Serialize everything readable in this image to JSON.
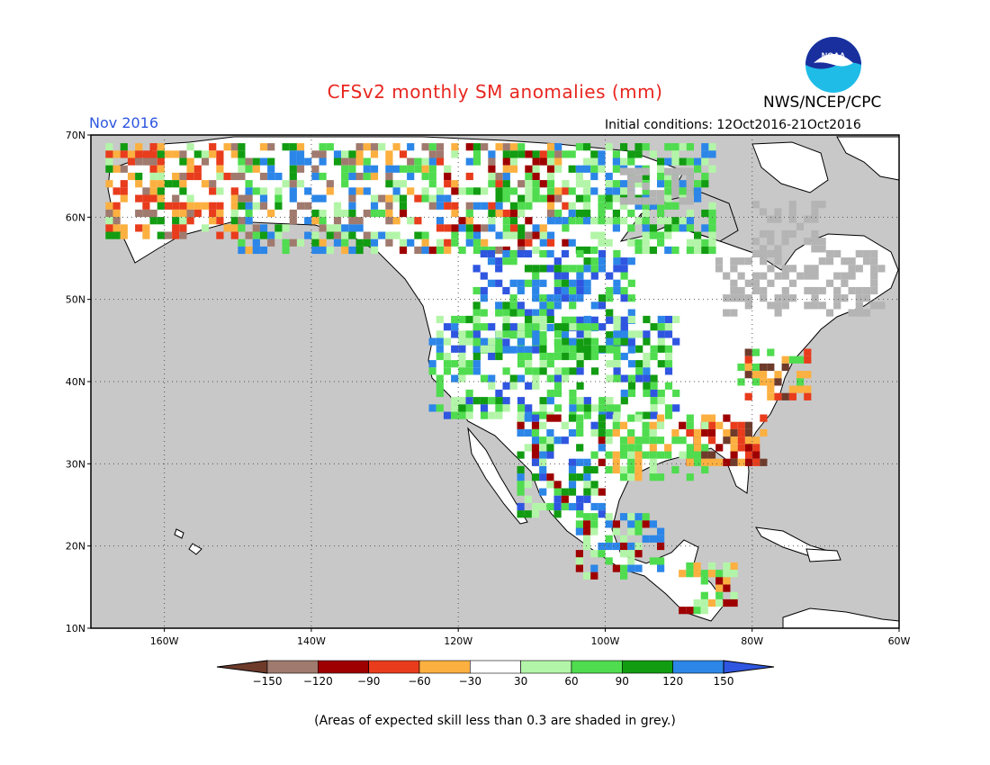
{
  "title": "CFSv2 monthly SM anomalies (mm)",
  "agency": "NWS/NCEP/CPC",
  "forecast_month": "Nov 2016",
  "initial_conditions": "Initial conditions: 12Oct2016-21Oct2016",
  "logo_text": "NOAA",
  "footnote": "(Areas of expected skill less than 0.3 are shaded in grey.)",
  "map": {
    "lon_range": [
      -170,
      -60
    ],
    "lat_range": [
      10,
      70
    ],
    "lat_ticks": [
      {
        "v": 70,
        "label": "70N"
      },
      {
        "v": 60,
        "label": "60N"
      },
      {
        "v": 50,
        "label": "50N"
      },
      {
        "v": 40,
        "label": "40N"
      },
      {
        "v": 30,
        "label": "30N"
      },
      {
        "v": 20,
        "label": "20N"
      },
      {
        "v": 10,
        "label": "10N"
      }
    ],
    "lon_ticks": [
      {
        "v": -160,
        "label": "160W"
      },
      {
        "v": -140,
        "label": "140W"
      },
      {
        "v": -120,
        "label": "120W"
      },
      {
        "v": -100,
        "label": "100W"
      },
      {
        "v": -80,
        "label": "80W"
      },
      {
        "v": -60,
        "label": "60W"
      }
    ],
    "background_color": "#c8c8c8",
    "grid": true
  },
  "legend": {
    "boundaries": [
      "-150",
      "-120",
      "-90",
      "-60",
      "-30",
      "30",
      "60",
      "90",
      "120",
      "150"
    ],
    "colors": [
      "#6e3b2b",
      "#a07a6e",
      "#9e0000",
      "#e83c1c",
      "#fcb040",
      "#ffffff",
      "#b3f5a8",
      "#4fdc4f",
      "#129c12",
      "#2c86e8",
      "#2f56e0"
    ]
  }
}
